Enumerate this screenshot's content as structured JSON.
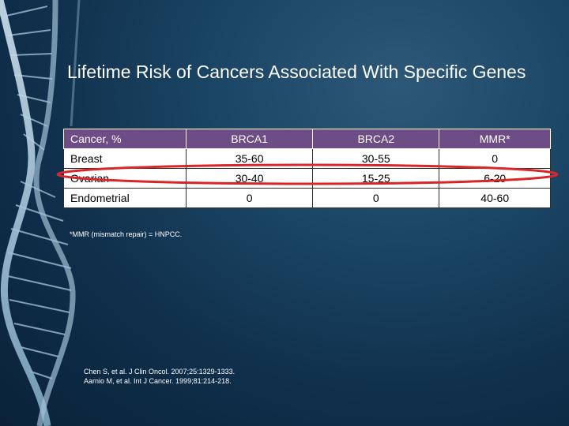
{
  "slide": {
    "title": "Lifetime Risk of Cancers Associated With Specific Genes",
    "table": {
      "headers": [
        "Cancer, %",
        "BRCA1",
        "BRCA2",
        "MMR*"
      ],
      "rows": [
        [
          "Breast",
          "35-60",
          "30-55",
          "0"
        ],
        [
          "Ovarian",
          "30-40",
          "15-25",
          "6-20"
        ],
        [
          "Endometrial",
          "0",
          "0",
          "40-60"
        ]
      ],
      "highlighted_row": "Ovarian"
    },
    "footnote": "*MMR (mismatch repair) = HNPCC.",
    "references": [
      "Chen S, et al. J Clin Oncol. 2007;25:1329-1333.",
      "Aarnio M, et al. Int J Cancer. 1999;81:214-218."
    ],
    "colors": {
      "header_fill": "#6e4d86",
      "highlight_ellipse": "#d8262a",
      "background": "#1a4463"
    }
  }
}
